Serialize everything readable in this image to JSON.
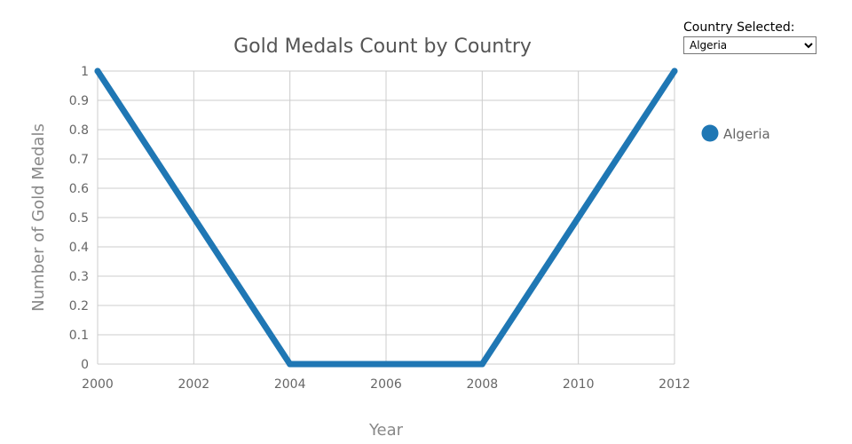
{
  "controls": {
    "country_label": "Country Selected:",
    "selected_country": "Algeria",
    "options": [
      "Algeria"
    ]
  },
  "colors": {
    "series": "#1f77b4",
    "grid": "#cccccc",
    "text": "#666666",
    "title": "#555555"
  },
  "chart_data": {
    "type": "line",
    "title": "Gold Medals Count by Country",
    "xlabel": "Year",
    "ylabel": "Number of Gold Medals",
    "xlim": [
      2000,
      2012
    ],
    "ylim": [
      0,
      1
    ],
    "x_ticks": [
      2000,
      2002,
      2004,
      2006,
      2008,
      2010,
      2012
    ],
    "x_tick_labels": [
      "2000",
      "2002",
      "2004",
      "2006",
      "2008",
      "2010",
      "2012"
    ],
    "y_ticks": [
      0,
      0.1,
      0.2,
      0.3,
      0.4,
      0.5,
      0.6,
      0.7,
      0.8,
      0.9,
      1
    ],
    "y_tick_labels": [
      "0",
      "0.1",
      "0.2",
      "0.3",
      "0.4",
      "0.5",
      "0.6",
      "0.7",
      "0.8",
      "0.9",
      "1"
    ],
    "grid": true,
    "legend_position": "right",
    "series": [
      {
        "name": "Algeria",
        "x": [
          2000,
          2004,
          2008,
          2012
        ],
        "y": [
          1,
          0,
          0,
          1
        ]
      }
    ]
  }
}
